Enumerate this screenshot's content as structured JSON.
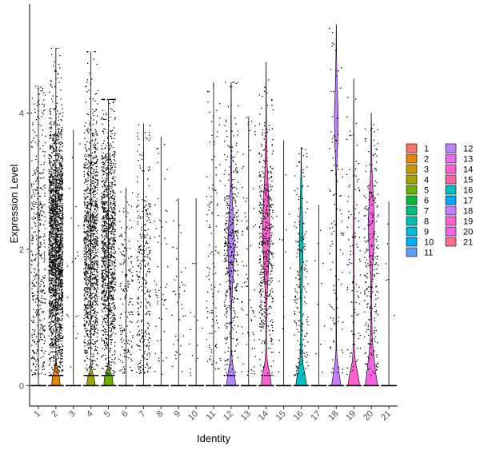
{
  "chart_data": {
    "type": "violin",
    "xlabel": "Identity",
    "ylabel": "Expression Level",
    "ylim": [
      -0.3,
      5.6
    ],
    "yticks": [
      0,
      2,
      4
    ],
    "grid": false,
    "legend_position": "right",
    "categories": [
      "1",
      "2",
      "3",
      "4",
      "5",
      "6",
      "7",
      "8",
      "9",
      "10",
      "11",
      "12",
      "13",
      "14",
      "15",
      "16",
      "17",
      "18",
      "19",
      "20",
      "21"
    ],
    "colors": [
      "#F8766D",
      "#E58700",
      "#C99800",
      "#A3A500",
      "#6BB100",
      "#00BA38",
      "#00BF7D",
      "#00C0AF",
      "#00BCD8",
      "#00B0F6",
      "#619CFF",
      "#B983FF",
      "#E76BF3",
      "#FD61D1",
      "#FF67A4",
      "#00BFC4",
      "#00A9FF",
      "#C77CFF",
      "#FF61CC",
      "#F564E3",
      "#FF6C91"
    ],
    "series": [
      {
        "name": "1",
        "max": 4.4,
        "density": 0.15,
        "points": 450,
        "violin": [
          [
            0,
            0
          ]
        ]
      },
      {
        "name": "2",
        "max": 4.95,
        "density": 0.9,
        "points": 2200,
        "violin": [
          [
            0,
            0.55
          ],
          [
            0.12,
            0.45
          ],
          [
            0.3,
            0.12
          ],
          [
            0.4,
            0.02
          ]
        ]
      },
      {
        "name": "3",
        "max": 3.75,
        "density": 0.02,
        "points": 20,
        "violin": [
          [
            0,
            0
          ]
        ]
      },
      {
        "name": "4",
        "max": 4.9,
        "density": 0.5,
        "points": 1200,
        "violin": [
          [
            0,
            0.55
          ],
          [
            0.12,
            0.4
          ],
          [
            0.25,
            0.08
          ],
          [
            0.32,
            0.01
          ]
        ]
      },
      {
        "name": "5",
        "max": 4.2,
        "density": 0.5,
        "points": 1200,
        "violin": [
          [
            0,
            0.6
          ],
          [
            0.12,
            0.5
          ],
          [
            0.25,
            0.12
          ],
          [
            0.35,
            0.01
          ]
        ]
      },
      {
        "name": "6",
        "max": 2.9,
        "density": 0.1,
        "points": 180,
        "violin": [
          [
            0,
            0
          ]
        ]
      },
      {
        "name": "7",
        "max": 3.85,
        "density": 0.2,
        "points": 320,
        "violin": [
          [
            0,
            0
          ]
        ]
      },
      {
        "name": "8",
        "max": 3.65,
        "density": 0.06,
        "points": 60,
        "violin": [
          [
            0,
            0
          ]
        ]
      },
      {
        "name": "9",
        "max": 2.75,
        "density": 0.05,
        "points": 40,
        "violin": [
          [
            0,
            0
          ]
        ]
      },
      {
        "name": "10",
        "max": 2.75,
        "density": 0.02,
        "points": 15,
        "violin": [
          [
            0,
            0
          ]
        ]
      },
      {
        "name": "11",
        "max": 4.45,
        "density": 0.12,
        "points": 120,
        "violin": [
          [
            0,
            0
          ]
        ]
      },
      {
        "name": "12",
        "max": 4.45,
        "density": 0.4,
        "points": 420,
        "violin": [
          [
            0,
            0.6
          ],
          [
            0.15,
            0.45
          ],
          [
            0.35,
            0.15
          ],
          [
            0.55,
            0.03
          ],
          [
            1.15,
            0.05
          ],
          [
            1.6,
            0.25
          ],
          [
            2.0,
            0.42
          ],
          [
            2.4,
            0.3
          ],
          [
            2.8,
            0.12
          ],
          [
            3.3,
            0.04
          ],
          [
            4.45,
            0
          ]
        ]
      },
      {
        "name": "13",
        "max": 3.95,
        "density": 0.06,
        "points": 80,
        "violin": [
          [
            0,
            0
          ]
        ]
      },
      {
        "name": "14",
        "max": 4.75,
        "density": 0.4,
        "points": 500,
        "violin": [
          [
            0,
            0.65
          ],
          [
            0.15,
            0.5
          ],
          [
            0.35,
            0.15
          ],
          [
            0.55,
            0.03
          ],
          [
            1.2,
            0.06
          ],
          [
            1.7,
            0.28
          ],
          [
            2.2,
            0.48
          ],
          [
            2.7,
            0.35
          ],
          [
            3.2,
            0.14
          ],
          [
            3.8,
            0.03
          ],
          [
            4.75,
            0
          ]
        ]
      },
      {
        "name": "15",
        "max": 3.6,
        "density": 0.02,
        "points": 15,
        "violin": [
          [
            0,
            0
          ]
        ]
      },
      {
        "name": "16",
        "max": 3.5,
        "density": 0.2,
        "points": 180,
        "violin": [
          [
            0,
            0.7
          ],
          [
            0.12,
            0.55
          ],
          [
            0.3,
            0.25
          ],
          [
            0.5,
            0.1
          ],
          [
            0.9,
            0.06
          ],
          [
            1.5,
            0.15
          ],
          [
            2.1,
            0.25
          ],
          [
            2.7,
            0.12
          ],
          [
            3.2,
            0.03
          ],
          [
            3.5,
            0
          ]
        ]
      },
      {
        "name": "17",
        "max": 2.65,
        "density": 0.02,
        "points": 10,
        "violin": [
          [
            0,
            0
          ]
        ]
      },
      {
        "name": "18",
        "max": 5.3,
        "density": 0.12,
        "points": 110,
        "violin": [
          [
            0,
            0.6
          ],
          [
            0.15,
            0.4
          ],
          [
            0.35,
            0.15
          ],
          [
            0.55,
            0.03
          ],
          [
            3.1,
            0.03
          ],
          [
            3.6,
            0.2
          ],
          [
            4.0,
            0.25
          ],
          [
            4.4,
            0.12
          ],
          [
            4.9,
            0.03
          ],
          [
            5.3,
            0
          ]
        ]
      },
      {
        "name": "19",
        "max": 4.5,
        "density": 0.1,
        "points": 110,
        "violin": [
          [
            0,
            0.75
          ],
          [
            0.15,
            0.55
          ],
          [
            0.35,
            0.2
          ],
          [
            0.6,
            0.04
          ],
          [
            1.2,
            0.03
          ],
          [
            2.0,
            0.05
          ],
          [
            3.0,
            0.03
          ],
          [
            4.5,
            0
          ]
        ]
      },
      {
        "name": "20",
        "max": 4.0,
        "density": 0.25,
        "points": 260,
        "violin": [
          [
            0,
            0.8
          ],
          [
            0.15,
            0.6
          ],
          [
            0.4,
            0.35
          ],
          [
            0.7,
            0.12
          ],
          [
            1.2,
            0.04
          ],
          [
            1.6,
            0.1
          ],
          [
            2.0,
            0.3
          ],
          [
            2.4,
            0.4
          ],
          [
            2.8,
            0.25
          ],
          [
            3.2,
            0.08
          ],
          [
            4.0,
            0
          ]
        ]
      },
      {
        "name": "21",
        "max": 2.7,
        "density": 0.02,
        "points": 6,
        "violin": [
          [
            0,
            0
          ]
        ]
      }
    ]
  }
}
